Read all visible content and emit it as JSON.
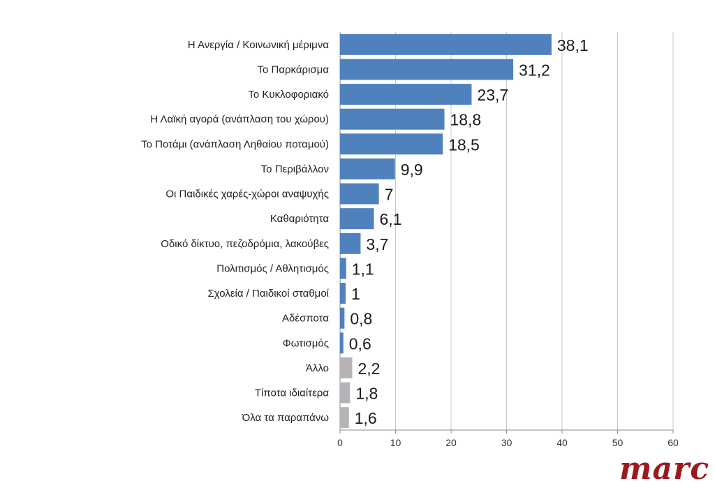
{
  "chart_data": {
    "type": "bar",
    "orientation": "horizontal",
    "categories": [
      "Η Ανεργία / Κοινωνική μέριμνα",
      "Το Παρκάρισμα",
      "Το Κυκλοφοριακό",
      "Η Λαϊκή αγορά (ανάπλαση του χώρου)",
      "Το Ποτάμι (ανάπλαση Ληθαίου ποταμού)",
      "Το Περιβάλλον",
      "Οι Παιδικές χαρές-χώροι αναψυχής",
      "Καθαριότητα",
      "Οδικό δίκτυο, πεζοδρόμια, λακούβες",
      "Πολιτισμός / Αθλητισμός",
      "Σχολεία / Παιδικοί σταθμοί",
      "Αδέσποτα",
      "Φωτισμός",
      "Άλλο",
      "Τίποτα ιδιαίτερα",
      "Όλα τα παραπάνω"
    ],
    "values": [
      38.1,
      31.2,
      23.7,
      18.8,
      18.5,
      9.9,
      7,
      6.1,
      3.7,
      1.1,
      1,
      0.8,
      0.6,
      2.2,
      1.8,
      1.6
    ],
    "value_labels": [
      "38,1",
      "31,2",
      "23,7",
      "18,8",
      "18,5",
      "9,9",
      "7",
      "6,1",
      "3,7",
      "1,1",
      "1",
      "0,8",
      "0,6",
      "2,2",
      "1,8",
      "1,6"
    ],
    "bar_colors": [
      "#4f81bd",
      "#4f81bd",
      "#4f81bd",
      "#4f81bd",
      "#4f81bd",
      "#4f81bd",
      "#4f81bd",
      "#4f81bd",
      "#4f81bd",
      "#4f81bd",
      "#4f81bd",
      "#4f81bd",
      "#4f81bd",
      "#b4b4b8",
      "#b4b4b8",
      "#b4b4b8"
    ],
    "xlim": [
      0,
      60
    ],
    "x_ticks": [
      0,
      10,
      20,
      30,
      40,
      50,
      60
    ],
    "grid": "vertical",
    "title": "",
    "xlabel": "",
    "ylabel": ""
  },
  "logo": {
    "text": "marc",
    "color": "#9a1b1f"
  }
}
